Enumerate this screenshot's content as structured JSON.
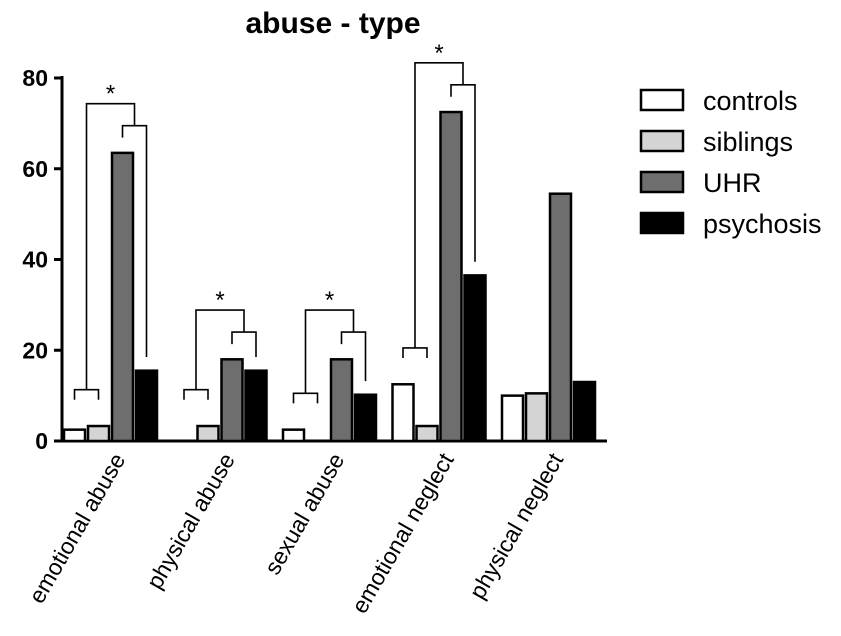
{
  "chart_data": {
    "type": "bar",
    "title": "abuse - type",
    "xlabel": "",
    "ylabel": "",
    "ylim": [
      0,
      80
    ],
    "yticks": [
      0,
      20,
      40,
      60,
      80
    ],
    "categories": [
      "emotional abuse",
      "physical abuse",
      "sexual abuse",
      "emotional neglect",
      "physical neglect"
    ],
    "series": [
      {
        "name": "controls",
        "values": [
          2.5,
          0,
          2.5,
          12.5,
          10
        ],
        "color": "#ffffff"
      },
      {
        "name": "siblings",
        "values": [
          3.3,
          3.3,
          0,
          3.3,
          10.5
        ],
        "color": "#d4d4d4"
      },
      {
        "name": "UHR",
        "values": [
          63.5,
          18,
          18,
          72.5,
          54.5
        ],
        "color": "#6e6e6e"
      },
      {
        "name": "psychosis",
        "values": [
          15.5,
          15.5,
          10.2,
          36.5,
          13
        ],
        "color": "#000000"
      }
    ],
    "legend": {
      "position": "right"
    },
    "grid": false,
    "annotations": {
      "significance_marker": "*",
      "significant_categories": [
        "emotional abuse",
        "physical abuse",
        "sexual abuse",
        "emotional neglect"
      ]
    }
  }
}
